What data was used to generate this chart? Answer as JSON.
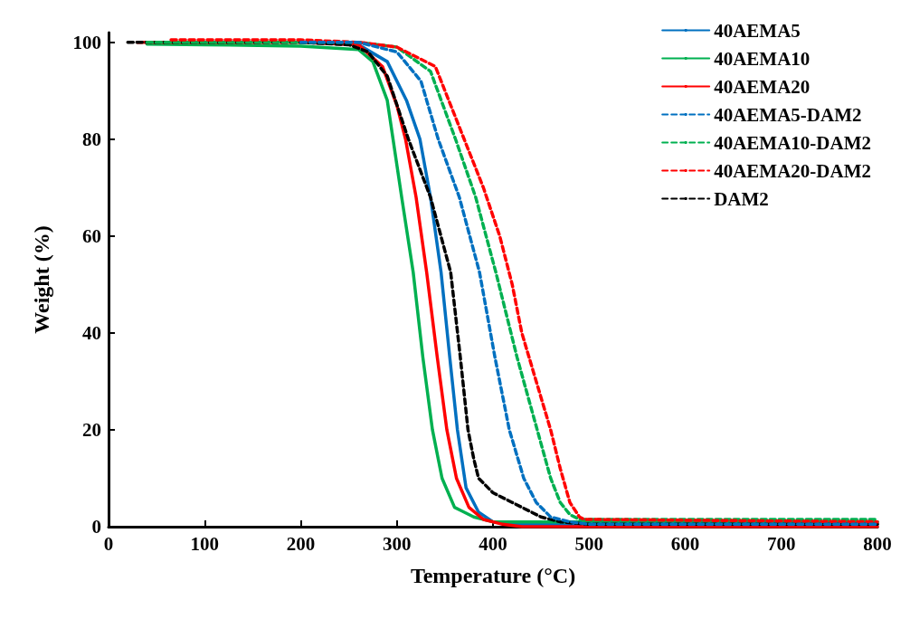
{
  "chart_data": {
    "type": "line",
    "xlabel": "Temperature (°C)",
    "ylabel": "Weight (%)",
    "xlim": [
      0,
      800
    ],
    "xticks": [
      0,
      100,
      200,
      300,
      400,
      500,
      600,
      700,
      800
    ],
    "ylim": [
      0,
      102
    ],
    "yticks": [
      0,
      20,
      40,
      60,
      80,
      100
    ],
    "grid": false,
    "legend": "top right",
    "marker": "none",
    "series": [
      {
        "name": "40AEMA5",
        "color": "#0070c0",
        "line_style": "solid",
        "x": [
          200,
          260,
          290,
          310,
          324,
          335,
          346,
          355,
          363,
          372,
          385,
          400,
          430,
          500,
          800
        ],
        "values": [
          100,
          99.5,
          96,
          88,
          80,
          68,
          52.5,
          35,
          20,
          8,
          3,
          1,
          0.5,
          0.5,
          0.5
        ]
      },
      {
        "name": "40AEMA10",
        "color": "#00b050",
        "line_style": "solid",
        "x": [
          40,
          100,
          200,
          260,
          275,
          290,
          296,
          305,
          317,
          327,
          337,
          347,
          360,
          380,
          400,
          500,
          800
        ],
        "values": [
          99.6,
          99.5,
          99.2,
          98.5,
          96,
          88,
          80,
          68,
          52.5,
          35,
          20,
          10,
          4,
          2,
          1,
          1,
          1
        ]
      },
      {
        "name": "40AEMA20",
        "color": "#ff0000",
        "line_style": "solid",
        "x": [
          30,
          100,
          200,
          260,
          285,
          300,
          309,
          320,
          331,
          342,
          352,
          362,
          375,
          390,
          410,
          430,
          800
        ],
        "values": [
          100,
          100,
          100,
          99.5,
          95,
          87,
          80,
          68,
          52.5,
          35,
          20,
          10,
          4,
          1.5,
          0.5,
          0,
          0
        ]
      },
      {
        "name": "40AEMA5-DAM2",
        "color": "#0070c0",
        "line_style": "dashed",
        "x": [
          200,
          260,
          300,
          325,
          343,
          365,
          386,
          402,
          417,
          432,
          445,
          460,
          480,
          500,
          800
        ],
        "values": [
          100,
          100,
          98,
          92,
          80,
          68,
          52.5,
          35,
          20,
          10,
          5,
          2,
          1,
          0.5,
          0.5
        ]
      },
      {
        "name": "40AEMA10-DAM2",
        "color": "#00b050",
        "line_style": "dashed",
        "x": [
          40,
          100,
          200,
          260,
          300,
          335,
          361,
          382,
          403,
          425,
          446,
          460,
          470,
          480,
          490,
          500,
          800
        ],
        "values": [
          100,
          100,
          100,
          100,
          99,
          94,
          80,
          68,
          52.5,
          35,
          20,
          10,
          5,
          2.5,
          1.5,
          1.5,
          1.5
        ]
      },
      {
        "name": "40AEMA20-DAM2",
        "color": "#ff0000",
        "line_style": "dashed",
        "x": [
          65,
          100,
          200,
          260,
          300,
          340,
          370,
          390,
          407,
          420,
          430,
          445,
          460,
          470,
          480,
          490,
          495,
          800
        ],
        "values": [
          100.5,
          100.5,
          100.5,
          100,
          99,
          95,
          80,
          70,
          60,
          50,
          40,
          30,
          20,
          12,
          5,
          2,
          1.5,
          1
        ]
      },
      {
        "name": "DAM2",
        "color": "#000000",
        "line_style": "dashed",
        "x": [
          20,
          100,
          200,
          250,
          270,
          290,
          312,
          335,
          356,
          366,
          374,
          380,
          385,
          400,
          420,
          450,
          470,
          500,
          800
        ],
        "values": [
          100,
          100,
          100,
          99.5,
          98,
          93,
          80,
          68,
          52.5,
          35,
          20,
          14,
          10,
          7,
          5,
          2,
          1,
          0.5,
          0.5
        ]
      }
    ]
  }
}
